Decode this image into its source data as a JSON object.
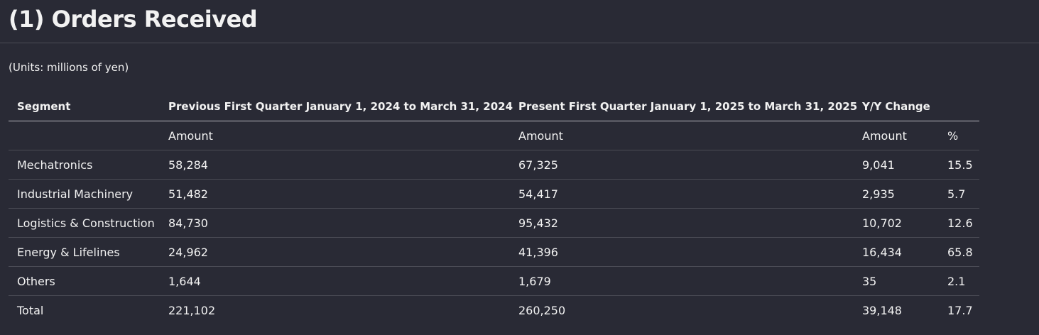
{
  "header": {
    "title": "(1) Orders Received",
    "units": "(Units: millions of yen)"
  },
  "table": {
    "headers": [
      "Segment",
      "Previous First Quarter January 1, 2024 to March 31, 2024",
      "Present First Quarter January 1, 2025 to March 31, 2025",
      "Y/Y Change"
    ],
    "subheaders": [
      "Amount",
      "Amount",
      "Amount",
      "%"
    ],
    "rows": [
      [
        "Mechatronics",
        "58,284",
        "67,325",
        "9,041",
        "15.5"
      ],
      [
        "Industrial Machinery",
        "51,482",
        "54,417",
        "2,935",
        "5.7"
      ],
      [
        "Logistics & Construction",
        "84,730",
        "95,432",
        "10,702",
        "12.6"
      ],
      [
        "Energy & Lifelines",
        "24,962",
        "41,396",
        "16,434",
        "65.8"
      ],
      [
        "Others",
        "1,644",
        "1,679",
        "35",
        "2.1"
      ],
      [
        "Total",
        "221,102",
        "260,250",
        "39,148",
        "17.7"
      ]
    ]
  }
}
